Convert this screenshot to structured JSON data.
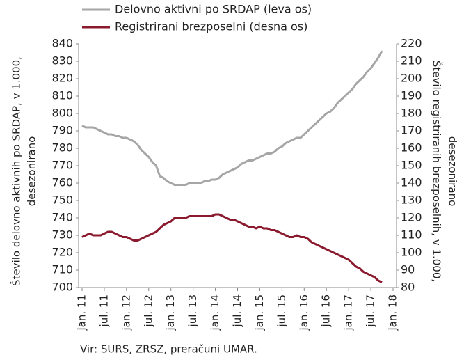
{
  "chart_data": {
    "type": "line",
    "legend": "top",
    "ylabel": [
      "Število delovno aktivnih po SRDAP, v 1.000,",
      "desezonirano"
    ],
    "y2label": [
      "Število registriranih brezposelnih, v 1.000,",
      "desezonirano"
    ],
    "source": "Vir: SURS, ZRSZ, preračuni UMAR.",
    "categories": [
      "jan. 11",
      null,
      null,
      null,
      null,
      null,
      "jul. 11",
      null,
      null,
      null,
      null,
      null,
      "jan. 12",
      null,
      null,
      null,
      null,
      null,
      "jul. 12",
      null,
      null,
      null,
      null,
      null,
      "jan. 13",
      null,
      null,
      null,
      null,
      null,
      "jul. 13",
      null,
      null,
      null,
      null,
      null,
      "jan. 14",
      null,
      null,
      null,
      null,
      null,
      "jul. 14",
      null,
      null,
      null,
      null,
      null,
      "jan. 15",
      null,
      null,
      null,
      null,
      null,
      "jul. 15",
      null,
      null,
      null,
      null,
      null,
      "jan. 16",
      null,
      null,
      null,
      null,
      null,
      "jul. 16",
      null,
      null,
      null,
      null,
      null,
      "jan. 17",
      null,
      null,
      null,
      null,
      null,
      "jul. 17",
      null,
      null,
      null,
      null,
      null,
      "jan. 18"
    ],
    "series": [
      {
        "name": "Delovno aktivni po SRDAP (leva os)",
        "color": "#a6a6a6",
        "axis": "y",
        "values": [
          793,
          792,
          792,
          792,
          791,
          790,
          789,
          788,
          788,
          787,
          787,
          786,
          786,
          785,
          784,
          782,
          779,
          777,
          775,
          772,
          770,
          764,
          763,
          761,
          760,
          759,
          759,
          759,
          759,
          760,
          760,
          760,
          760,
          761,
          761,
          762,
          762,
          763,
          765,
          766,
          767,
          768,
          769,
          771,
          772,
          773,
          773,
          774,
          775,
          776,
          777,
          777,
          778,
          780,
          781,
          783,
          784,
          785,
          786,
          786,
          788,
          790,
          792,
          794,
          796,
          798,
          800,
          801,
          803,
          806,
          808,
          810,
          812,
          814,
          817,
          819,
          821,
          824,
          826,
          829,
          832,
          836,
          null,
          null,
          null
        ]
      },
      {
        "name": "Registrirani brezposelni (desna os)",
        "color": "#8b1a2e",
        "axis": "y2",
        "values": [
          109,
          110,
          111,
          110,
          110,
          110,
          111,
          112,
          112,
          111,
          110,
          109,
          109,
          108,
          107,
          107,
          108,
          109,
          110,
          111,
          112,
          114,
          116,
          117,
          118,
          120,
          120,
          120,
          120,
          121,
          121,
          121,
          121,
          121,
          121,
          121,
          122,
          122,
          121,
          120,
          119,
          119,
          118,
          117,
          116,
          115,
          115,
          114,
          115,
          114,
          114,
          113,
          113,
          112,
          111,
          110,
          109,
          109,
          110,
          109,
          109,
          108,
          106,
          105,
          104,
          103,
          102,
          101,
          100,
          99,
          98,
          97,
          96,
          94,
          92,
          91,
          89,
          88,
          87,
          86,
          84,
          83,
          null,
          null,
          null
        ]
      }
    ],
    "ylim": [
      700,
      840
    ],
    "yticks": [
      700,
      710,
      720,
      730,
      740,
      750,
      760,
      770,
      780,
      790,
      800,
      810,
      820,
      830,
      840
    ],
    "y2lim": [
      80,
      220
    ],
    "y2ticks": [
      80,
      90,
      100,
      110,
      120,
      130,
      140,
      150,
      160,
      170,
      180,
      190,
      200,
      210,
      220
    ]
  }
}
